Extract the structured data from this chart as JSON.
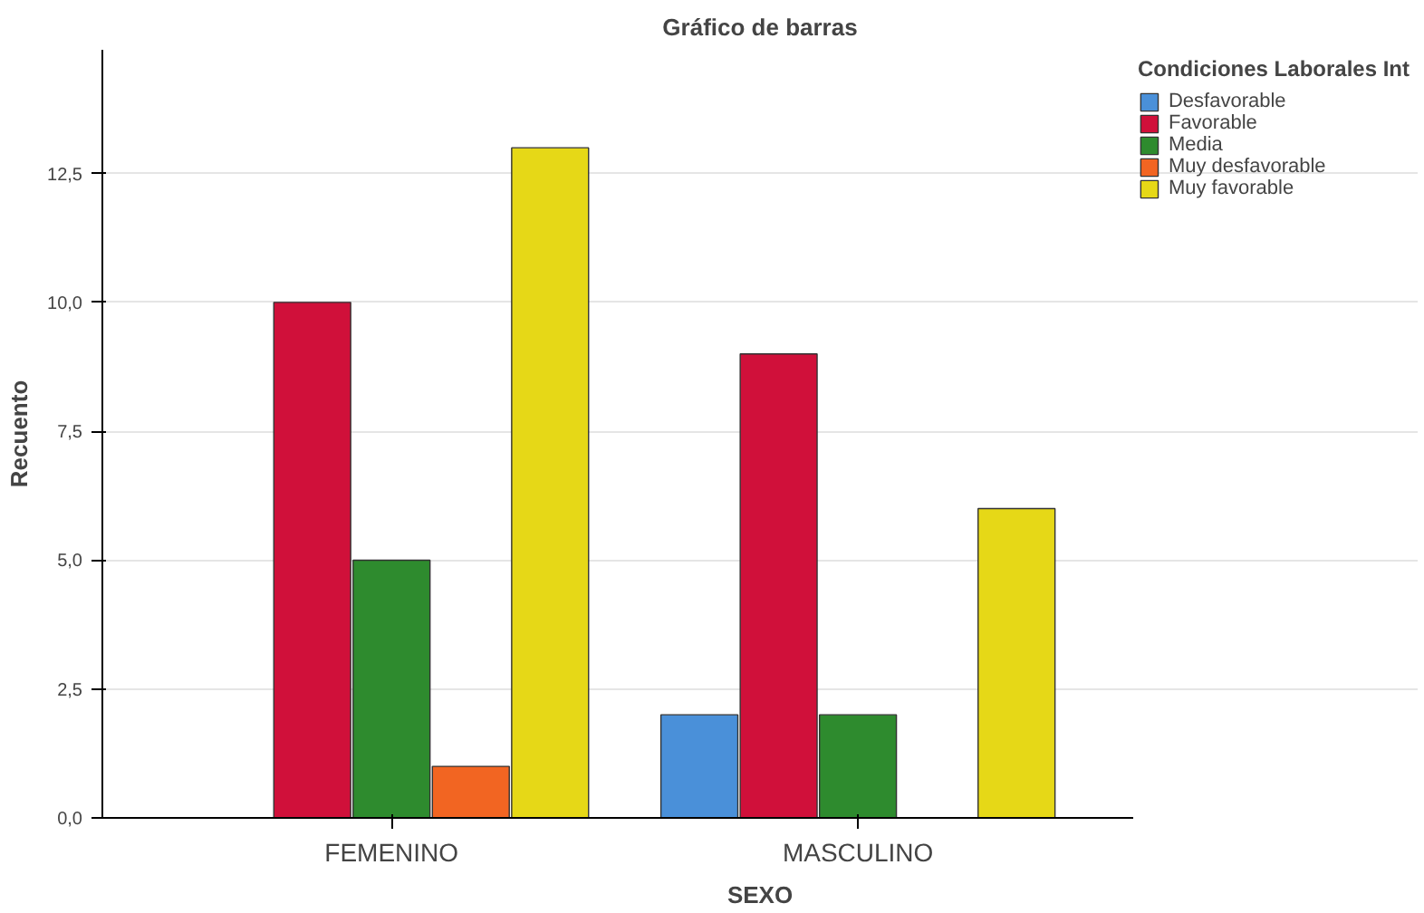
{
  "chart_data": {
    "type": "bar",
    "title": "Gráfico de barras",
    "xlabel": "SEXO",
    "ylabel": "Recuento",
    "legend_title": "Condiciones Laborales Int",
    "categories": [
      "FEMENINO",
      "MASCULINO"
    ],
    "series": [
      {
        "name": "Desfavorable",
        "color": "#4a90d9",
        "values": [
          null,
          2
        ]
      },
      {
        "name": "Favorable",
        "color": "#d0103a",
        "values": [
          10,
          9
        ]
      },
      {
        "name": "Media",
        "color": "#2e8b2e",
        "values": [
          5,
          2
        ]
      },
      {
        "name": "Muy desfavorable",
        "color": "#f26522",
        "values": [
          1,
          null
        ]
      },
      {
        "name": "Muy favorable",
        "color": "#e6d817",
        "values": [
          13,
          6
        ]
      }
    ],
    "ylim": [
      0,
      14.9
    ],
    "yticks": [
      {
        "value": 0,
        "label": "0,0"
      },
      {
        "value": 2.5,
        "label": "2,5"
      },
      {
        "value": 5,
        "label": "5,0"
      },
      {
        "value": 7.5,
        "label": "7,5"
      },
      {
        "value": 10,
        "label": "10,0"
      },
      {
        "value": 12.5,
        "label": "12,5"
      }
    ],
    "grid": "y",
    "legend": "right"
  }
}
